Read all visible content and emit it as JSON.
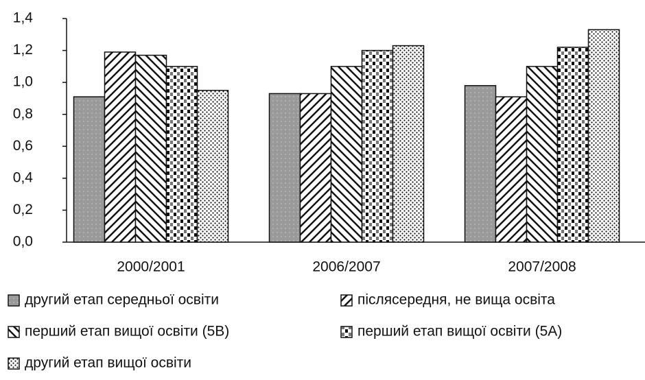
{
  "chart_data": {
    "type": "bar",
    "categories": [
      "2000/2001",
      "2006/2007",
      "2007/2008"
    ],
    "series": [
      {
        "name": "другий етап середньої освіти",
        "values": [
          0.91,
          0.93,
          0.98
        ]
      },
      {
        "name": "післясередня, не вища освіта",
        "values": [
          1.19,
          0.93,
          0.91
        ]
      },
      {
        "name": "перший етап вищої освіти (5B)",
        "values": [
          1.17,
          1.1,
          1.1
        ]
      },
      {
        "name": "перший етап вищої освіти (5A)",
        "values": [
          1.1,
          1.2,
          1.22
        ]
      },
      {
        "name": "другий етап вищої освіти",
        "values": [
          0.95,
          1.23,
          1.33
        ]
      }
    ],
    "ylim": [
      0,
      1.4
    ],
    "yticks": [
      {
        "value": 0,
        "label": "0,0"
      },
      {
        "value": 0.2,
        "label": "0,2"
      },
      {
        "value": 0.4,
        "label": "0,4"
      },
      {
        "value": 0.6,
        "label": "0,6"
      },
      {
        "value": 0.8,
        "label": "0,8"
      },
      {
        "value": 1.0,
        "label": "1,0"
      },
      {
        "value": 1.2,
        "label": "1,2"
      },
      {
        "value": 1.4,
        "label": "1,4"
      }
    ],
    "grid": false
  }
}
